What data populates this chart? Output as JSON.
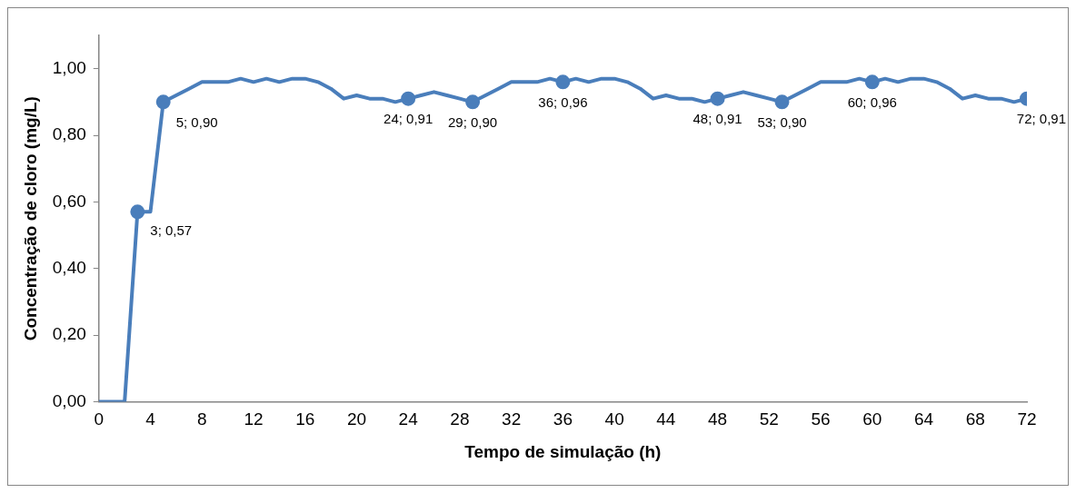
{
  "chart_data": {
    "type": "line",
    "xlabel": "Tempo de simulação (h)",
    "ylabel": "Concentração de cloro (mg/L)",
    "x": [
      0,
      1,
      2,
      3,
      4,
      5,
      6,
      7,
      8,
      9,
      10,
      11,
      12,
      13,
      14,
      15,
      16,
      17,
      18,
      19,
      20,
      21,
      22,
      23,
      24,
      25,
      26,
      27,
      28,
      29,
      30,
      31,
      32,
      33,
      34,
      35,
      36,
      37,
      38,
      39,
      40,
      41,
      42,
      43,
      44,
      45,
      46,
      47,
      48,
      49,
      50,
      51,
      52,
      53,
      54,
      55,
      56,
      57,
      58,
      59,
      60,
      61,
      62,
      63,
      64,
      65,
      66,
      67,
      68,
      69,
      70,
      71,
      72
    ],
    "series": [
      {
        "color": "#4a7ebb",
        "values": [
          0,
          0,
          0,
          0.57,
          0.57,
          0.9,
          0.92,
          0.94,
          0.96,
          0.96,
          0.96,
          0.97,
          0.96,
          0.97,
          0.96,
          0.97,
          0.97,
          0.96,
          0.94,
          0.91,
          0.92,
          0.91,
          0.91,
          0.9,
          0.91,
          0.92,
          0.93,
          0.92,
          0.91,
          0.9,
          0.92,
          0.94,
          0.96,
          0.96,
          0.96,
          0.97,
          0.96,
          0.97,
          0.96,
          0.97,
          0.97,
          0.96,
          0.94,
          0.91,
          0.92,
          0.91,
          0.91,
          0.9,
          0.91,
          0.92,
          0.93,
          0.92,
          0.91,
          0.9,
          0.92,
          0.94,
          0.96,
          0.96,
          0.96,
          0.97,
          0.96,
          0.97,
          0.96,
          0.97,
          0.97,
          0.96,
          0.94,
          0.91,
          0.92,
          0.91,
          0.91,
          0.9,
          0.91
        ],
        "marker": "none"
      },
      {
        "type": "scatter",
        "color": "#4a7ebb",
        "marker": "circle",
        "x": [
          3,
          5,
          24,
          29,
          36,
          48,
          53,
          60,
          72
        ],
        "values": [
          0.57,
          0.9,
          0.91,
          0.9,
          0.96,
          0.91,
          0.9,
          0.96,
          0.91
        ],
        "value_labels": [
          "3; 0,57",
          "5; 0,90",
          "24; 0,91",
          "29; 0,90",
          "36; 0,96",
          "48; 0,91",
          "53; 0,90",
          "60; 0,96",
          "72; 0,91"
        ]
      }
    ],
    "xlim": [
      0,
      72
    ],
    "xticks": [
      0,
      4,
      8,
      12,
      16,
      20,
      24,
      28,
      32,
      36,
      40,
      44,
      48,
      52,
      56,
      60,
      64,
      68,
      72
    ],
    "ylim": [
      0,
      1.1
    ],
    "yticks": [
      {
        "value": 0,
        "label": "0,00"
      },
      {
        "value": 0.2,
        "label": "0,20"
      },
      {
        "value": 0.4,
        "label": "0,40"
      },
      {
        "value": 0.6,
        "label": "0,60"
      },
      {
        "value": 0.8,
        "label": "0,80"
      },
      {
        "value": 1,
        "label": "1,00"
      }
    ],
    "line_style": "solid",
    "grid": false,
    "legend": false
  }
}
